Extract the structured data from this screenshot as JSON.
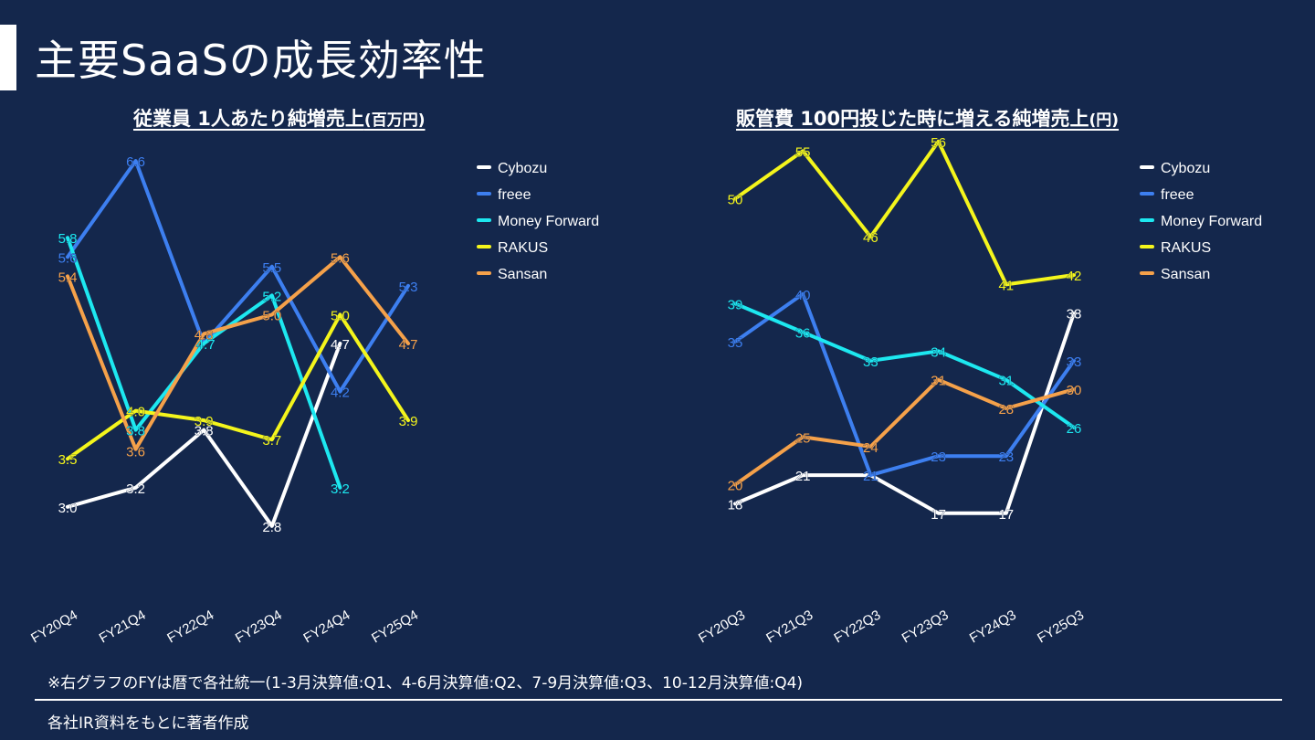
{
  "page": {
    "title": "主要SaaSの成長効率性",
    "footnote": "※右グラフのFYは暦で各社統一(1-3月決算値:Q1、4-6月決算値:Q2、7-9月決算値:Q3、10-12月決算値:Q4)",
    "source": "各社IR資料をもとに著者作成"
  },
  "colors": {
    "background": "#14274c",
    "Cybozu": "#ffffff",
    "freee": "#3d7ff0",
    "Money Forward": "#1de8f0",
    "RAKUS": "#f4f51c",
    "Sansan": "#f5a14a"
  },
  "chart_data": [
    {
      "type": "line",
      "title": "従業員 1人あたり純増売上",
      "title_unit": "(百万円)",
      "categories": [
        "FY20Q4",
        "FY21Q4",
        "FY22Q4",
        "FY23Q4",
        "FY24Q4",
        "FY25Q4"
      ],
      "ylim": [
        2.0,
        7.0
      ],
      "legend_position": "top-right",
      "series": [
        {
          "name": "Cybozu",
          "values": [
            3.0,
            3.2,
            3.8,
            2.8,
            4.7,
            null
          ],
          "labels": [
            "3.0",
            "3.2",
            "3.8",
            "2.8",
            "4.7",
            null
          ]
        },
        {
          "name": "freee",
          "values": [
            5.6,
            6.6,
            4.7,
            5.5,
            4.2,
            5.3
          ],
          "labels": [
            "5.6",
            "6.6",
            null,
            "5.5",
            "4.2",
            "5.3"
          ]
        },
        {
          "name": "Money Forward",
          "values": [
            5.8,
            3.8,
            4.7,
            5.2,
            3.2,
            null
          ],
          "labels": [
            "5.8",
            "3.8",
            "4.7",
            "5.2",
            "3.2",
            null
          ]
        },
        {
          "name": "RAKUS",
          "values": [
            3.5,
            4.0,
            3.9,
            3.7,
            5.0,
            3.9
          ],
          "labels": [
            "3.5",
            "4.0",
            "3.9",
            "3.7",
            "5.0",
            "3.9"
          ]
        },
        {
          "name": "Sansan",
          "values": [
            5.4,
            3.6,
            4.8,
            5.0,
            5.6,
            4.7
          ],
          "labels": [
            "5.4",
            "3.6",
            "4.8",
            "5.0",
            "5.6",
            "4.7"
          ]
        }
      ]
    },
    {
      "type": "line",
      "title": "販管費 100円投じた時に増える純増売上",
      "title_unit": "(円)",
      "categories": [
        "FY20Q3",
        "FY21Q3",
        "FY22Q3",
        "FY23Q3",
        "FY24Q3",
        "FY25Q3"
      ],
      "ylim": [
        5,
        65
      ],
      "legend_position": "top-right",
      "series": [
        {
          "name": "Cybozu",
          "values": [
            18,
            21,
            21,
            17,
            17,
            38
          ],
          "labels": [
            "18",
            "21",
            null,
            "17",
            "17",
            "38"
          ]
        },
        {
          "name": "freee",
          "values": [
            35,
            40,
            21,
            23,
            23,
            33
          ],
          "labels": [
            "35",
            "40",
            "21",
            "23",
            "23",
            "33"
          ]
        },
        {
          "name": "Money Forward",
          "values": [
            39,
            36,
            33,
            34,
            31,
            26
          ],
          "labels": [
            "39",
            "36",
            "33",
            "34",
            "31",
            "26"
          ]
        },
        {
          "name": "RAKUS",
          "values": [
            50,
            55,
            46,
            56,
            41,
            42
          ],
          "labels": [
            "50",
            "55",
            "46",
            "56",
            "41",
            "42"
          ]
        },
        {
          "name": "Sansan",
          "values": [
            20,
            25,
            24,
            31,
            28,
            30
          ],
          "labels": [
            "20",
            "25",
            "24",
            "31",
            "28",
            "30"
          ]
        }
      ]
    }
  ]
}
